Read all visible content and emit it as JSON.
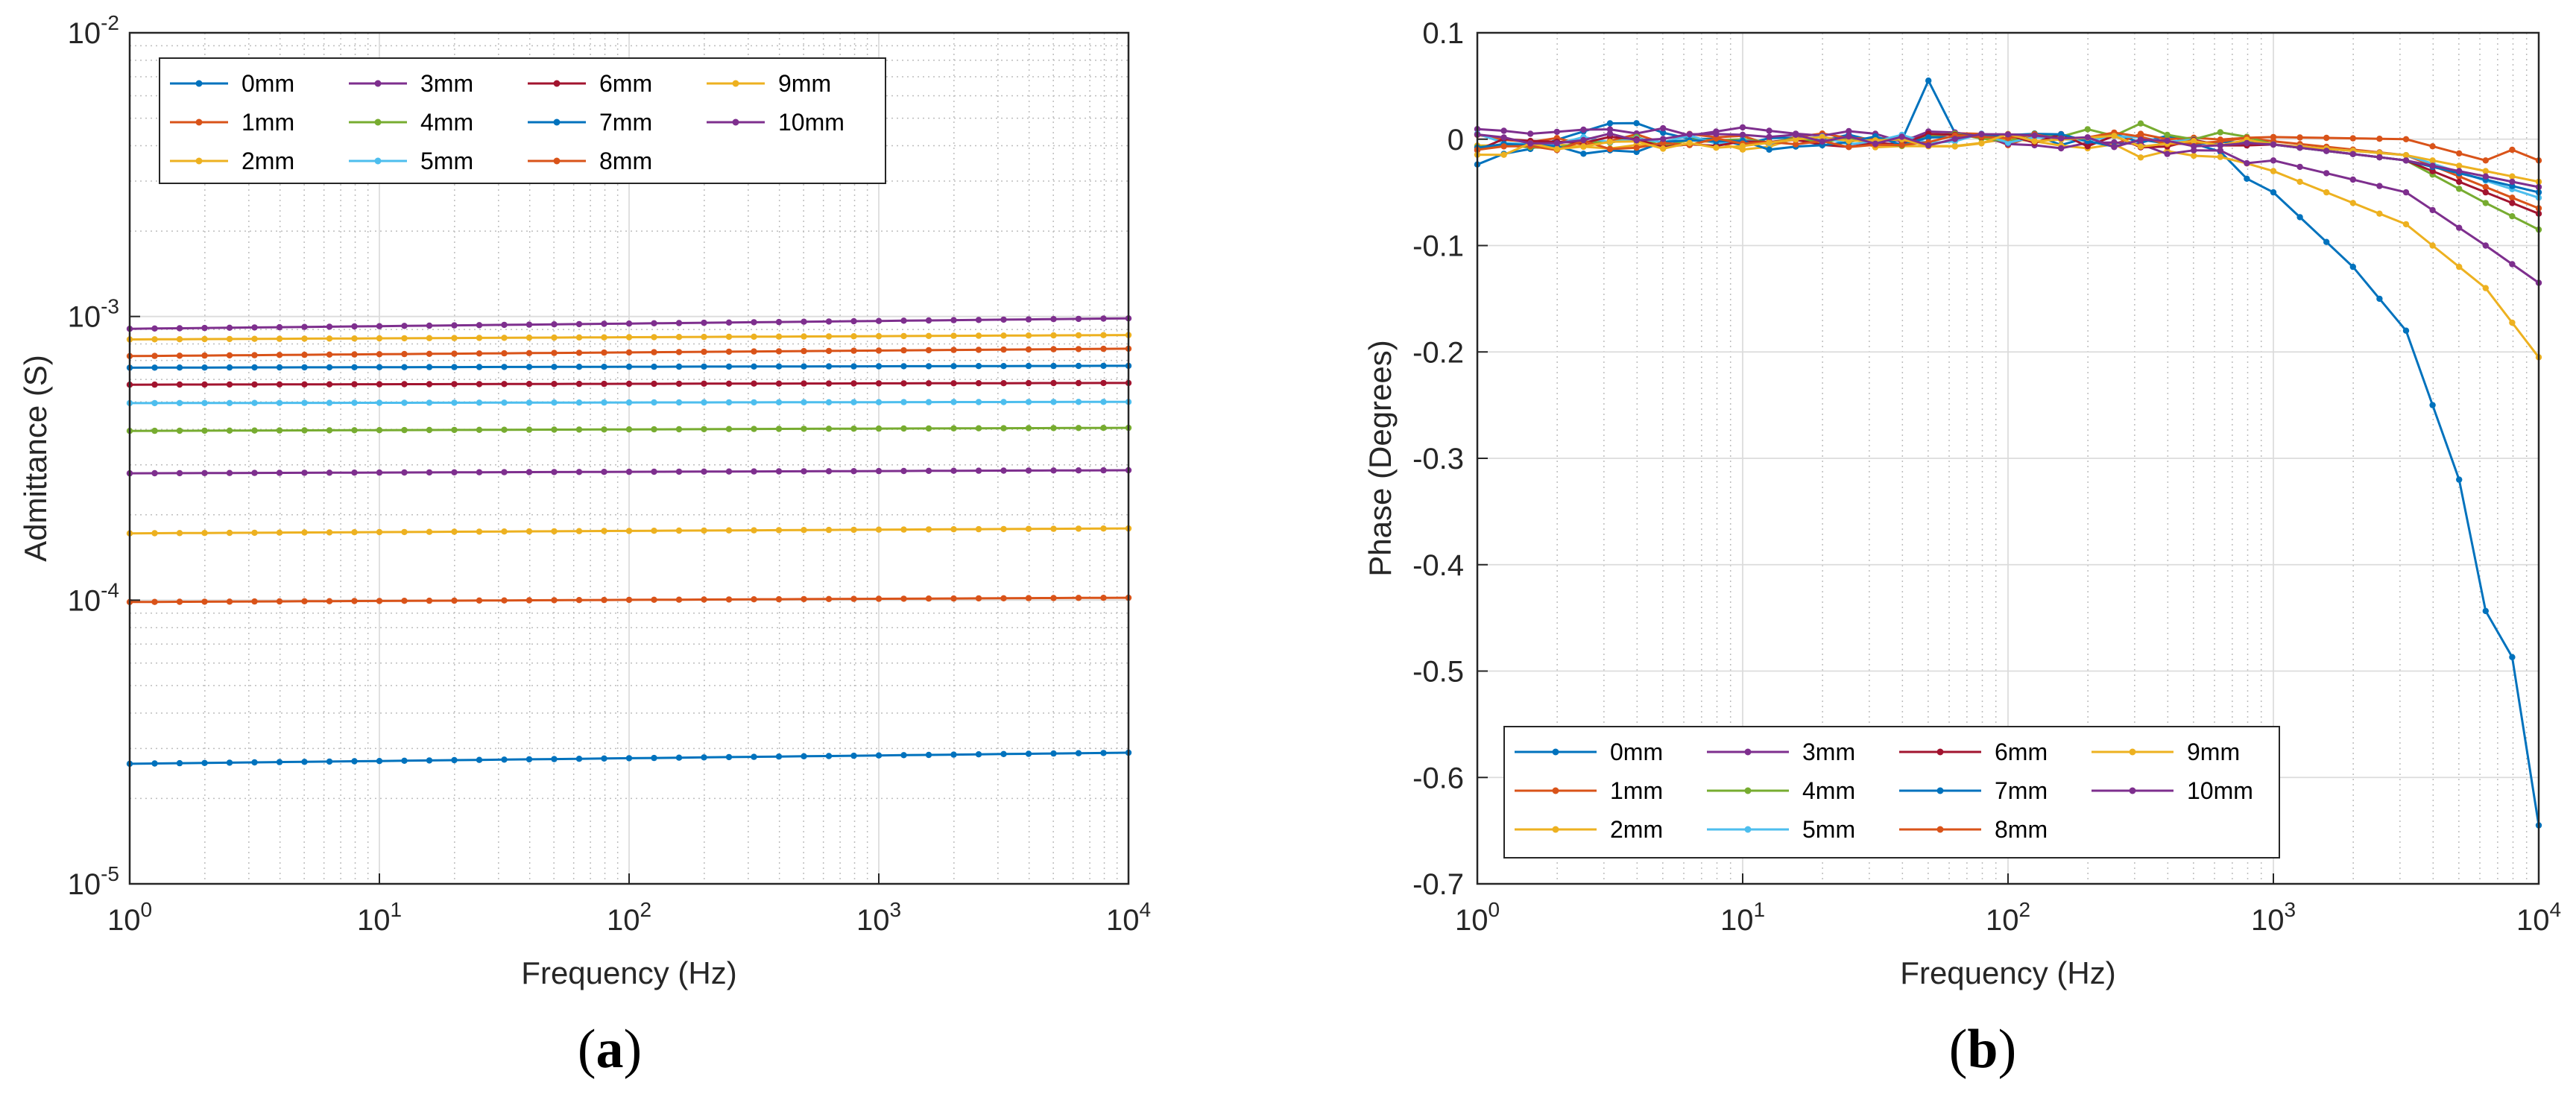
{
  "chart_data": [
    {
      "type": "line",
      "panel_label": "(a)",
      "panel_letter": "a",
      "xlabel": "Frequency (Hz)",
      "ylabel": "Admittance (S)",
      "xscale": "log",
      "yscale": "log",
      "xlim": [
        1,
        10000
      ],
      "ylim": [
        1e-05,
        0.01
      ],
      "xticks": [
        {
          "base": "10",
          "exp": "0"
        },
        {
          "base": "10",
          "exp": "1"
        },
        {
          "base": "10",
          "exp": "2"
        },
        {
          "base": "10",
          "exp": "3"
        },
        {
          "base": "10",
          "exp": "4"
        }
      ],
      "yticks": [
        {
          "base": "10",
          "exp": "-5"
        },
        {
          "base": "10",
          "exp": "-4"
        },
        {
          "base": "10",
          "exp": "-3"
        },
        {
          "base": "10",
          "exp": "-2"
        }
      ],
      "grid": true,
      "legend_position": "top-left",
      "x_points_per_decade": 10,
      "series": [
        {
          "name": "0mm",
          "color": "#0072BD",
          "start": 2.65e-05,
          "end": 2.9e-05
        },
        {
          "name": "1mm",
          "color": "#D95319",
          "start": 9.85e-05,
          "end": 0.000102
        },
        {
          "name": "2mm",
          "color": "#EDB120",
          "start": 0.000172,
          "end": 0.000179
        },
        {
          "name": "3mm",
          "color": "#7E2F8E",
          "start": 0.00028,
          "end": 0.000287
        },
        {
          "name": "4mm",
          "color": "#77AC30",
          "start": 0.000395,
          "end": 0.000405
        },
        {
          "name": "5mm",
          "color": "#4DBEEE",
          "start": 0.000495,
          "end": 0.0005
        },
        {
          "name": "6mm",
          "color": "#A2142F",
          "start": 0.000575,
          "end": 0.000583
        },
        {
          "name": "7mm",
          "color": "#0072BD",
          "start": 0.00066,
          "end": 0.00067
        },
        {
          "name": "8mm",
          "color": "#D95319",
          "start": 0.000725,
          "end": 0.00077
        },
        {
          "name": "9mm",
          "color": "#EDB120",
          "start": 0.00083,
          "end": 0.00086
        },
        {
          "name": "10mm",
          "color": "#7E2F8E",
          "start": 0.000905,
          "end": 0.000985
        }
      ]
    },
    {
      "type": "line",
      "panel_label": "(b)",
      "panel_letter": "b",
      "xlabel": "Frequency (Hz)",
      "ylabel": "Phase (Degrees)",
      "xscale": "log",
      "yscale": "linear",
      "xlim": [
        1,
        10000
      ],
      "ylim": [
        -0.7,
        0.1
      ],
      "xticks": [
        {
          "base": "10",
          "exp": "0"
        },
        {
          "base": "10",
          "exp": "1"
        },
        {
          "base": "10",
          "exp": "2"
        },
        {
          "base": "10",
          "exp": "3"
        },
        {
          "base": "10",
          "exp": "4"
        }
      ],
      "yticks": [
        "0.1",
        "0",
        "-0.1",
        "-0.2",
        "-0.3",
        "-0.4",
        "-0.5",
        "-0.6",
        "-0.7"
      ],
      "grid": true,
      "legend_position": "bottom-left",
      "x_points_per_decade": 10,
      "series": [
        {
          "name": "0mm",
          "color": "#0072BD",
          "end": -0.645,
          "anchors": [
            [
              0,
              -0.02
            ],
            [
              0.15,
              -0.015
            ],
            [
              0.4,
              0.01
            ],
            [
              0.6,
              0.012
            ],
            [
              0.8,
              0
            ],
            [
              1.5,
              0
            ],
            [
              2.3,
              0
            ],
            [
              2.7,
              0
            ],
            [
              3.0,
              -0.05
            ],
            [
              3.3,
              -0.12
            ],
            [
              3.5,
              -0.18
            ],
            [
              3.7,
              -0.32
            ],
            [
              3.78,
              -0.445
            ],
            [
              3.85,
              -0.44
            ],
            [
              3.93,
              -0.515
            ],
            [
              4,
              -0.645
            ]
          ],
          "spikes": [
            [
              1.7,
              0.055
            ]
          ]
        },
        {
          "name": "1mm",
          "color": "#D95319",
          "end": -0.065,
          "anchors": [
            [
              0,
              0
            ],
            [
              2,
              0
            ],
            [
              3,
              -0.002
            ],
            [
              3.5,
              -0.015
            ],
            [
              4,
              -0.065
            ]
          ]
        },
        {
          "name": "2mm",
          "color": "#EDB120",
          "end": -0.205,
          "anchors": [
            [
              0,
              -0.01
            ],
            [
              2,
              0
            ],
            [
              2.6,
              -0.015
            ],
            [
              3,
              -0.03
            ],
            [
              3.5,
              -0.08
            ],
            [
              3.8,
              -0.14
            ],
            [
              4,
              -0.205
            ]
          ]
        },
        {
          "name": "3mm",
          "color": "#7E2F8E",
          "end": -0.135,
          "anchors": [
            [
              0,
              0.005
            ],
            [
              0.3,
              0.01
            ],
            [
              2,
              0
            ],
            [
              3,
              -0.02
            ],
            [
              3.5,
              -0.05
            ],
            [
              3.8,
              -0.1
            ],
            [
              4,
              -0.135
            ]
          ]
        },
        {
          "name": "4mm",
          "color": "#77AC30",
          "end": -0.085,
          "anchors": [
            [
              0,
              -0.005
            ],
            [
              2,
              0
            ],
            [
              2.5,
              0.01
            ],
            [
              3,
              -0.005
            ],
            [
              3.5,
              -0.02
            ],
            [
              3.8,
              -0.06
            ],
            [
              4,
              -0.085
            ]
          ]
        },
        {
          "name": "5mm",
          "color": "#4DBEEE",
          "end": -0.055,
          "anchors": [
            [
              0,
              0
            ],
            [
              2,
              0
            ],
            [
              3,
              -0.005
            ],
            [
              3.5,
              -0.015
            ],
            [
              4,
              -0.055
            ]
          ]
        },
        {
          "name": "6mm",
          "color": "#A2142F",
          "end": -0.07,
          "anchors": [
            [
              0,
              -0.005
            ],
            [
              2,
              0
            ],
            [
              3,
              -0.005
            ],
            [
              3.5,
              -0.02
            ],
            [
              4,
              -0.07
            ]
          ]
        },
        {
          "name": "7mm",
          "color": "#0072BD",
          "end": -0.05,
          "anchors": [
            [
              0,
              -0.01
            ],
            [
              2,
              0
            ],
            [
              3,
              -0.005
            ],
            [
              3.5,
              -0.02
            ],
            [
              4,
              -0.05
            ]
          ]
        },
        {
          "name": "8mm",
          "color": "#D95319",
          "end": -0.02,
          "anchors": [
            [
              0,
              -0.005
            ],
            [
              2,
              0
            ],
            [
              3,
              0.002
            ],
            [
              3.5,
              0
            ],
            [
              3.8,
              -0.02
            ],
            [
              3.9,
              -0.01
            ],
            [
              4,
              -0.02
            ]
          ]
        },
        {
          "name": "9mm",
          "color": "#EDB120",
          "end": -0.04,
          "anchors": [
            [
              0,
              -0.01
            ],
            [
              2,
              0
            ],
            [
              3,
              -0.005
            ],
            [
              3.5,
              -0.015
            ],
            [
              4,
              -0.04
            ]
          ]
        },
        {
          "name": "10mm",
          "color": "#7E2F8E",
          "end": -0.045,
          "anchors": [
            [
              0,
              0
            ],
            [
              2,
              0
            ],
            [
              3,
              -0.005
            ],
            [
              3.5,
              -0.02
            ],
            [
              4,
              -0.045
            ]
          ]
        }
      ]
    }
  ]
}
